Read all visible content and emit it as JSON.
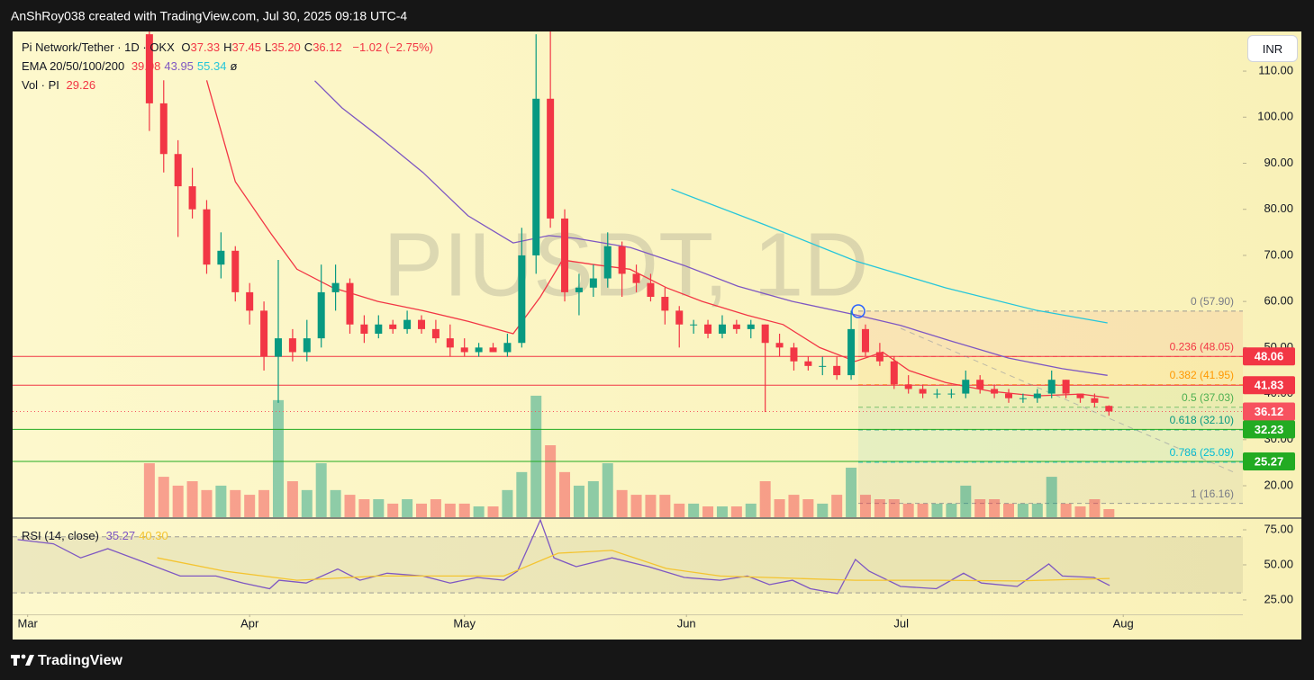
{
  "header": {
    "text": "AnShRoy038 created with TradingView.com, Jul 30, 2025 09:18 UTC-4"
  },
  "footer": {
    "brand": "TradingView"
  },
  "currency_button": "INR",
  "chart_data": {
    "type": "candlestick",
    "watermark": "PIUSDT, 1D",
    "symbol": "Pi Network/Tether · 1D · OKX",
    "ohlc_legend": [
      {
        "key": "O",
        "value": 37.33
      },
      {
        "key": "H",
        "value": 37.45
      },
      {
        "key": "L",
        "value": 35.2,
        "label": "35.20"
      },
      {
        "key": "C",
        "value": 36.12
      }
    ],
    "change": {
      "label": "−1.02 (−2.75%)"
    },
    "xlim": [
      -2.1,
      169.7
    ],
    "xticks": [
      {
        "value": 0,
        "label": "Mar"
      },
      {
        "value": 31,
        "label": "Apr"
      },
      {
        "value": 61,
        "label": "May"
      },
      {
        "value": 92,
        "label": "Jun"
      },
      {
        "value": 122,
        "label": "Jul"
      },
      {
        "value": 153,
        "label": "Aug"
      }
    ],
    "ylim": [
      13.17,
      118.6
    ],
    "yticks": [
      {
        "value": 20,
        "label": "20.00"
      },
      {
        "value": 30,
        "label": "30.00"
      },
      {
        "value": 40,
        "label": "40.00"
      },
      {
        "value": 50,
        "label": "50.00"
      },
      {
        "value": 60,
        "label": "60.00"
      },
      {
        "value": 70,
        "label": "70.00"
      },
      {
        "value": 80,
        "label": "80.00"
      },
      {
        "value": 90,
        "label": "90.00"
      },
      {
        "value": 100,
        "label": "100.00"
      },
      {
        "value": 110,
        "label": "110.00"
      }
    ],
    "series": [
      {
        "up_color": "#089981",
        "down_color": "#f23645",
        "x": [
          17,
          19,
          21,
          23,
          25,
          27,
          29,
          31,
          33,
          35,
          37,
          39,
          41,
          43,
          45,
          47,
          49,
          51,
          53,
          55,
          57,
          59,
          61,
          63,
          65,
          67,
          69,
          71,
          73,
          75,
          77,
          79,
          81,
          83,
          85,
          87,
          89,
          91,
          93,
          95,
          97,
          99,
          101,
          103,
          105,
          107,
          109,
          111,
          113,
          115,
          117,
          119,
          121,
          123,
          125,
          127,
          129,
          131,
          133,
          135,
          137,
          139,
          141,
          143,
          145,
          147,
          149,
          151
        ],
        "open": [
          118,
          103,
          92,
          85,
          80,
          68,
          71,
          62,
          58,
          48,
          52,
          49,
          52,
          62,
          64,
          55,
          53,
          55,
          54,
          56,
          54,
          52,
          50,
          49,
          50,
          49,
          51,
          70,
          104,
          78,
          62,
          63,
          65,
          72,
          66,
          64,
          61,
          58,
          55,
          55,
          53,
          55,
          54,
          55,
          51,
          50,
          47,
          46,
          46,
          44,
          54,
          49,
          47,
          42,
          41,
          40,
          40,
          40,
          43,
          41,
          40,
          39,
          39,
          40,
          43,
          40,
          39,
          37.33
        ],
        "high": [
          125,
          108,
          95,
          89,
          82,
          75,
          72,
          64,
          60,
          69,
          54,
          56,
          68,
          68,
          65,
          57,
          57,
          56,
          58,
          57,
          56,
          55,
          52,
          51,
          51,
          53,
          76,
          118,
          120,
          80,
          66,
          68,
          75,
          73,
          68,
          66,
          63,
          59,
          56,
          56,
          57,
          56,
          56,
          55,
          53,
          51,
          48,
          48,
          48,
          58,
          55,
          51,
          48,
          44,
          42,
          41,
          41,
          45,
          44,
          42,
          41,
          40,
          41,
          45,
          43,
          40,
          40,
          37.45
        ],
        "low": [
          97,
          88,
          74,
          78,
          66,
          65,
          60,
          55,
          45,
          38,
          47,
          47,
          50,
          58,
          53,
          51,
          52,
          53,
          53,
          53,
          51,
          48,
          48,
          48,
          49,
          48,
          50,
          66,
          76,
          60,
          57,
          61,
          63,
          61,
          62,
          60,
          55,
          50,
          53,
          52,
          52,
          53,
          52,
          36,
          48,
          45,
          45,
          44,
          43,
          43,
          48,
          46,
          41,
          40,
          39,
          39,
          39,
          39,
          40,
          39,
          38,
          38,
          38,
          39,
          39,
          38,
          37,
          35.2
        ],
        "close": [
          103,
          92,
          85,
          80,
          68,
          71,
          62,
          58,
          48,
          52,
          49,
          52,
          62,
          64,
          55,
          53,
          55,
          54,
          56,
          54,
          52,
          50,
          49,
          50,
          49,
          51,
          70,
          104,
          78,
          62,
          63,
          65,
          72,
          66,
          64,
          61,
          58,
          55,
          55,
          53,
          55,
          54,
          55,
          51,
          50,
          47,
          46,
          46,
          44,
          54,
          49,
          47,
          42,
          41,
          40,
          40,
          40,
          43,
          41,
          40,
          39,
          39,
          40,
          43,
          40,
          39,
          38,
          36.12
        ]
      }
    ],
    "volume": {
      "name": "Vol · PI",
      "vlim": [
        0,
        1755
      ],
      "values": [
        195,
        146,
        114,
        130,
        98,
        114,
        98,
        81,
        98,
        423,
        130,
        98,
        195,
        98,
        81,
        65,
        65,
        49,
        65,
        49,
        65,
        49,
        49,
        39,
        39,
        98,
        163,
        439,
        260,
        163,
        114,
        130,
        195,
        98,
        81,
        81,
        81,
        49,
        49,
        39,
        39,
        39,
        49,
        130,
        65,
        81,
        65,
        49,
        81,
        179,
        81,
        65,
        65,
        49,
        49,
        49,
        49,
        114,
        65,
        65,
        49,
        49,
        49,
        146,
        49,
        39,
        65,
        29.26
      ]
    },
    "ema_legend": "EMA 20/50/100/200",
    "ema": [
      {
        "color": "#f23645",
        "legend_label": "39.08",
        "x": [
          25,
          29,
          34,
          37.6,
          42.6,
          48.9,
          55.2,
          61.5,
          67.8,
          71.6,
          74.7,
          79.1,
          84.1,
          89.2,
          94.2,
          100.5,
          105.5,
          110.6,
          115.6,
          119.4,
          123.1,
          128.2,
          134.5,
          140.8,
          147.1,
          151
        ],
        "values": [
          108,
          86,
          74.7,
          67,
          63,
          60,
          58,
          55.7,
          53,
          61,
          69,
          68,
          67,
          63,
          60,
          57,
          55,
          50,
          47,
          49,
          45,
          42.4,
          40.5,
          39.5,
          39.9,
          39.08
        ]
      },
      {
        "color": "#7e57c2",
        "legend_label": "43.95",
        "x": [
          40.1,
          43.9,
          48.9,
          55.2,
          61.5,
          67.8,
          72.8,
          76.6,
          84.2,
          91.7,
          99.2,
          106.8,
          115.6,
          121.9,
          129.4,
          137,
          144.5,
          150.8
        ],
        "values": [
          107.9,
          102,
          96,
          88,
          78.6,
          72.7,
          74.3,
          73.7,
          71.7,
          67.8,
          63.3,
          60,
          57.1,
          54.8,
          51.2,
          47.7,
          45.4,
          43.95
        ]
      },
      {
        "color": "#26c6da",
        "legend_label": "55.34",
        "x": [
          89.9,
          103,
          115.6,
          128.2,
          140.8,
          150.8
        ],
        "values": [
          84.4,
          76.6,
          68.8,
          62.95,
          58.1,
          55.34
        ]
      },
      {
        "color": "#131722",
        "legend_label": "ø",
        "x": [],
        "values": []
      }
    ],
    "price_lines": [
      {
        "value": 48.06,
        "color": "#f23645",
        "style": "solid"
      },
      {
        "value": 41.83,
        "color": "#f23645",
        "style": "solid"
      },
      {
        "value": 36.12,
        "color": "#f7525f",
        "style": "dotted"
      },
      {
        "value": 32.23,
        "color": "#22ab22",
        "style": "solid"
      },
      {
        "value": 25.27,
        "color": "#22ab22",
        "style": "solid"
      }
    ],
    "fib": [
      {
        "label": "0 (57.90)",
        "value": 57.9,
        "color": "#787b86"
      },
      {
        "label": "0.236 (48.05)",
        "value": 48.05,
        "color": "#f23645"
      },
      {
        "label": "0.382 (41.95)",
        "value": 41.95,
        "color": "#ff9800"
      },
      {
        "label": "0.5 (37.03)",
        "value": 37.03,
        "color": "#4caf50"
      },
      {
        "label": "0.618 (32.10)",
        "value": 32.1,
        "color": "#089981"
      },
      {
        "label": "0.786 (25.09)",
        "value": 25.09,
        "color": "#00bcd4"
      },
      {
        "label": "1 (16.16)",
        "value": 16.16,
        "color": "#787b86"
      }
    ],
    "rsi": {
      "title": "RSI (14, close)",
      "ylim": [
        14.7,
        82.7
      ],
      "bands": [
        30,
        70
      ],
      "yticks": [
        {
          "value": 25,
          "label": "25.00"
        },
        {
          "value": 50,
          "label": "50.00"
        },
        {
          "value": 75,
          "label": "75.00"
        }
      ],
      "series": [
        {
          "color": "#7e57c2",
          "legend_label": "35.27",
          "x": [
            -1.4,
            3.6,
            7.4,
            11.2,
            16.2,
            21.3,
            26.3,
            30.1,
            33.8,
            35.1,
            38.9,
            43.3,
            46.4,
            50.2,
            55.2,
            59,
            62.8,
            66.5,
            68.4,
            71.6,
            73.5,
            76.6,
            81.6,
            86.7,
            91.7,
            96.7,
            100.5,
            103.6,
            106.8,
            109.3,
            113.1,
            115.6,
            117.5,
            121.9,
            126.9,
            130.7,
            133.2,
            138.2,
            142.6,
            144.5,
            148.9,
            151.1
          ],
          "values": [
            68,
            65,
            55,
            61.5,
            52,
            42,
            42,
            37,
            33,
            39,
            37,
            47,
            39,
            44,
            42,
            37,
            41,
            39,
            45.5,
            82,
            55,
            48.7,
            55,
            48.7,
            41,
            39,
            42,
            35.9,
            39,
            33,
            29.5,
            53.8,
            45.5,
            34.6,
            33,
            44,
            37,
            34.6,
            50.6,
            42,
            41,
            35.27
          ]
        },
        {
          "color": "#f4c430",
          "legend_label": "40.30",
          "x": [
            18.1,
            27.5,
            37.6,
            48.9,
            66.5,
            74.1,
            81.6,
            89.2,
            96.7,
            106.8,
            115.6,
            126.9,
            138.2,
            151.1
          ],
          "values": [
            55,
            45.5,
            39,
            42,
            42,
            58.3,
            60.3,
            47.4,
            42,
            40.4,
            39,
            39,
            38.5,
            40.3
          ]
        }
      ]
    }
  }
}
